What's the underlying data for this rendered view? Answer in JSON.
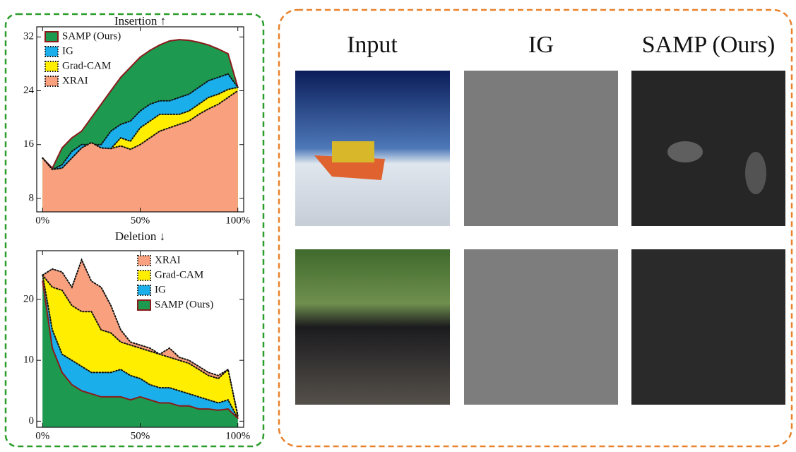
{
  "chart_data": [
    {
      "type": "area",
      "title": "Insertion ↑",
      "legend": "upper left",
      "x": [
        0,
        5,
        10,
        15,
        20,
        25,
        30,
        35,
        40,
        45,
        50,
        55,
        60,
        65,
        70,
        75,
        80,
        85,
        90,
        95,
        100
      ],
      "xlim": [
        -3,
        103
      ],
      "ylim": [
        6,
        33.5
      ],
      "xticks": [
        {
          "value": 0,
          "label": "0%"
        },
        {
          "value": 50,
          "label": "50%"
        },
        {
          "value": 100,
          "label": "100%"
        }
      ],
      "yticks": [
        8,
        16,
        24,
        32
      ],
      "series": [
        {
          "name": "SAMP (Ours)",
          "color": "#1e9a50",
          "edge": "#8b1a1a",
          "linestyle": "solid",
          "values": [
            14,
            12.5,
            15.5,
            17,
            18,
            20,
            22,
            24,
            26,
            27.5,
            29,
            30,
            30.8,
            31.4,
            31.6,
            31.5,
            31.2,
            30.8,
            30.2,
            29.5,
            24.5
          ]
        },
        {
          "name": "IG",
          "color": "#1aaeea",
          "edge": "#111111",
          "linestyle": "dotted",
          "values": [
            14,
            12.3,
            13,
            15,
            16,
            16,
            16,
            18,
            19,
            19.5,
            21,
            22,
            22.5,
            22.5,
            23,
            23.5,
            24.5,
            25.5,
            26,
            26.5,
            24.5
          ]
        },
        {
          "name": "Grad-CAM",
          "color": "#ffee00",
          "edge": "#111111",
          "linestyle": "dotted",
          "values": [
            14,
            12.3,
            12.5,
            14,
            15.5,
            16.3,
            15.5,
            15.4,
            17,
            16.5,
            18.5,
            19.5,
            20.5,
            20.5,
            20.5,
            21,
            22,
            23,
            23.5,
            24.2,
            24.5
          ]
        },
        {
          "name": "XRAI",
          "color": "#f9a07e",
          "edge": "#111111",
          "linestyle": "dotted",
          "values": [
            14,
            12.3,
            12.5,
            14,
            15.5,
            16.3,
            15.5,
            15.4,
            15.8,
            15.3,
            16,
            17,
            18,
            18.5,
            19,
            19.5,
            20.5,
            21.3,
            22,
            23,
            24
          ]
        }
      ]
    },
    {
      "type": "area",
      "title": "Deletion ↓",
      "legend": "upper right",
      "x": [
        0,
        5,
        10,
        15,
        20,
        25,
        30,
        35,
        40,
        45,
        50,
        55,
        60,
        65,
        70,
        75,
        80,
        85,
        90,
        95,
        100
      ],
      "xlim": [
        -3,
        103
      ],
      "ylim": [
        -1,
        28
      ],
      "xticks": [
        {
          "value": 0,
          "label": "0%"
        },
        {
          "value": 50,
          "label": "50%"
        },
        {
          "value": 100,
          "label": "100%"
        }
      ],
      "yticks": [
        0,
        10,
        20
      ],
      "series": [
        {
          "name": "XRAI",
          "color": "#f9a07e",
          "edge": "#111111",
          "linestyle": "dotted",
          "values": [
            24,
            25,
            24.5,
            22,
            26.5,
            23,
            22,
            19,
            15,
            13,
            12.5,
            12,
            11,
            12,
            10.5,
            10,
            9,
            8,
            7.5,
            8.5,
            1
          ]
        },
        {
          "name": "Grad-CAM",
          "color": "#ffee00",
          "edge": "#111111",
          "linestyle": "dotted",
          "values": [
            24,
            22,
            21.5,
            19,
            18,
            18,
            15,
            14.5,
            13,
            12.5,
            12,
            11.5,
            11,
            10.5,
            10,
            9.5,
            8.5,
            7.5,
            7,
            8.5,
            0.8
          ]
        },
        {
          "name": "IG",
          "color": "#1aaeea",
          "edge": "#111111",
          "linestyle": "dotted",
          "values": [
            24,
            15,
            11,
            10,
            9,
            8,
            8,
            8,
            8.5,
            7.5,
            7,
            6,
            5.5,
            5.5,
            5,
            4.5,
            4,
            3.5,
            3,
            3.5,
            0.5
          ]
        },
        {
          "name": "SAMP (Ours)",
          "color": "#1e9a50",
          "edge": "#8b1a1a",
          "linestyle": "solid",
          "values": [
            23,
            12,
            8,
            6,
            5,
            4.5,
            4,
            4,
            4,
            3.5,
            4,
            3.5,
            3,
            3,
            2.5,
            2.5,
            2,
            2,
            1.8,
            2,
            0.5
          ]
        }
      ]
    }
  ],
  "panel": {
    "columns": [
      "Input",
      "IG",
      "SAMP (Ours)"
    ]
  }
}
